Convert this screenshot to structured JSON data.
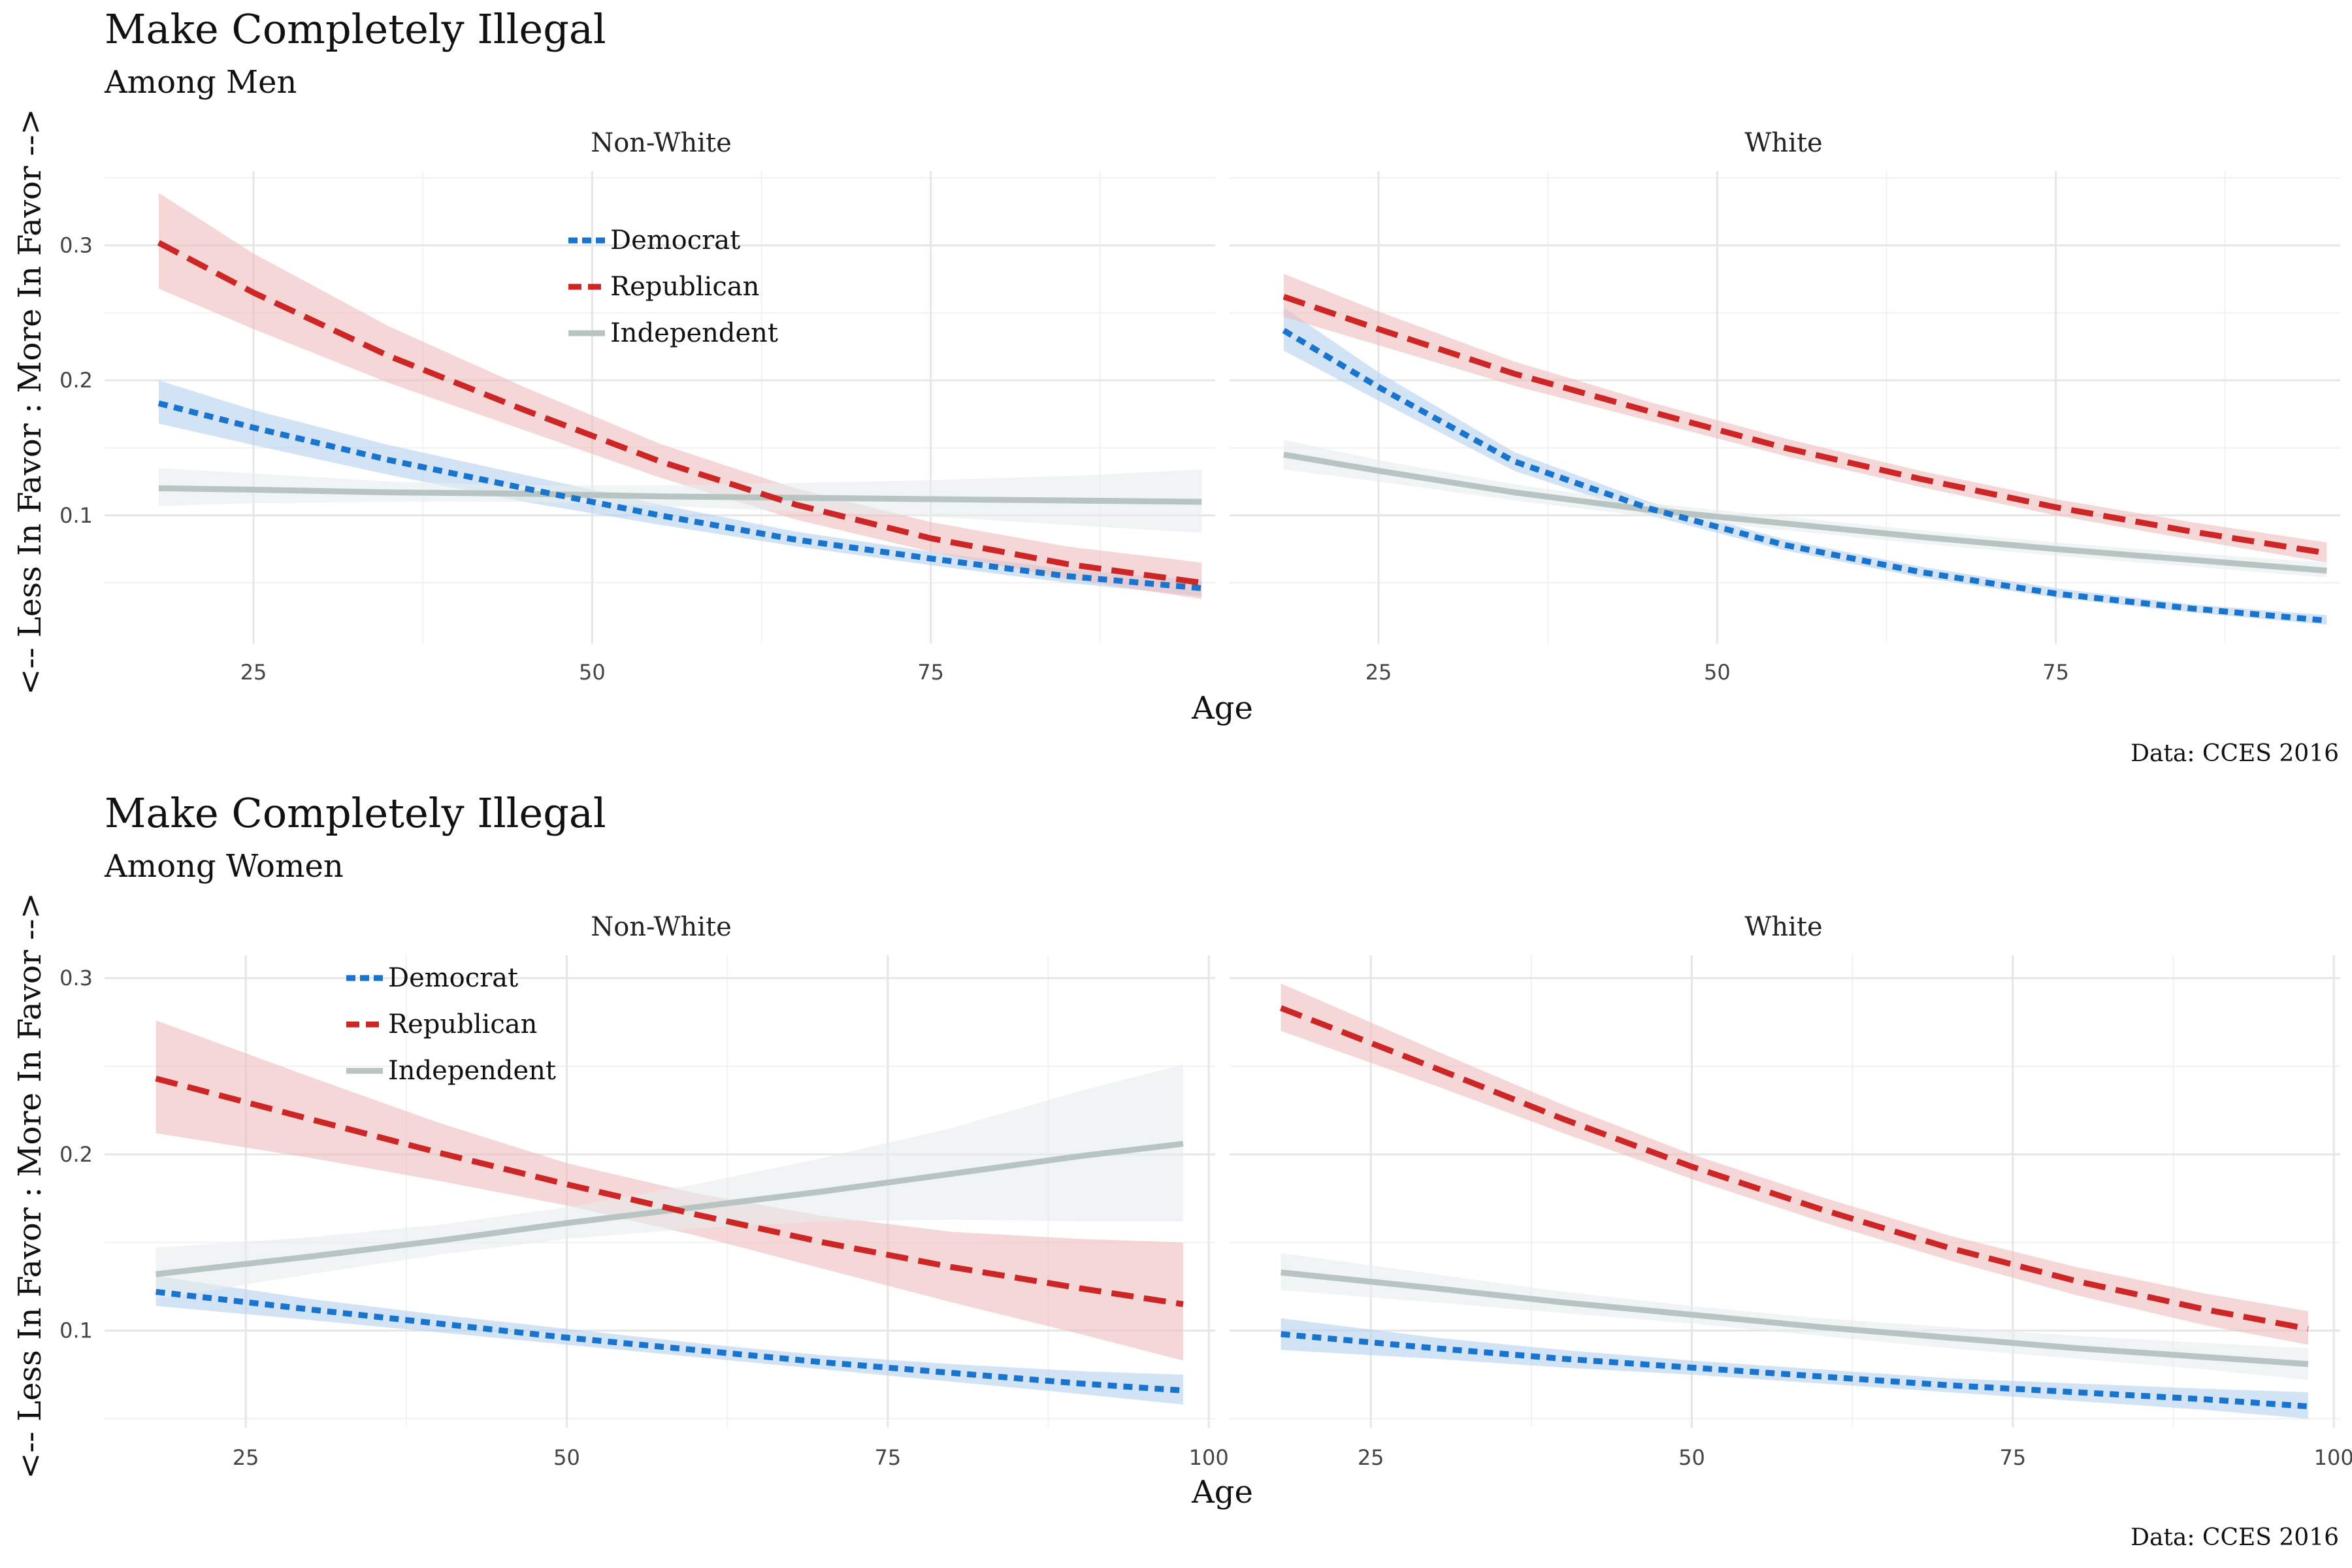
{
  "colors": {
    "Democrat": "#1874cd",
    "Republican": "#cd2626",
    "Independent": "#b8c4c2",
    "Democrat_band": "#b5d1f0",
    "Republican_band": "#efbcbc",
    "Independent_band": "#e6ecec",
    "grid_major": "#e6e6e6",
    "grid_minor": "#f1f1f1"
  },
  "chart_data": [
    {
      "type": "line",
      "title": "Make Completely Illegal",
      "subtitle": "Among Men",
      "xlabel": "Age",
      "ylabel": "<-- Less In Favor : More In Favor -->",
      "caption": "Data: CCES 2016",
      "legend": [
        "Democrat",
        "Republican",
        "Independent"
      ],
      "legend_placement": "inside top of left panel",
      "ylim": [
        0.005,
        0.355
      ],
      "yticks": [
        0.1,
        0.2,
        0.3
      ],
      "ytick_labels": [
        "0.1",
        "0.2",
        "0.3"
      ],
      "xlim": [
        14,
        96
      ],
      "xticks": [
        25,
        50,
        75
      ],
      "xtick_labels": [
        "25",
        "50",
        "75"
      ],
      "panels": [
        {
          "strip": "Non-White",
          "series": [
            {
              "name": "Democrat",
              "x": [
                18,
                25,
                35,
                45,
                55,
                65,
                75,
                85,
                95
              ],
              "y": [
                0.183,
                0.165,
                0.141,
                0.12,
                0.1,
                0.082,
                0.068,
                0.055,
                0.046
              ],
              "lower": [
                0.168,
                0.152,
                0.13,
                0.11,
                0.093,
                0.077,
                0.063,
                0.05,
                0.04
              ],
              "upper": [
                0.2,
                0.178,
                0.152,
                0.13,
                0.108,
                0.088,
                0.073,
                0.06,
                0.052
              ]
            },
            {
              "name": "Republican",
              "x": [
                18,
                25,
                35,
                45,
                55,
                65,
                75,
                85,
                95
              ],
              "y": [
                0.302,
                0.265,
                0.218,
                0.178,
                0.14,
                0.108,
                0.083,
                0.064,
                0.05
              ],
              "lower": [
                0.268,
                0.238,
                0.198,
                0.163,
                0.128,
                0.097,
                0.073,
                0.053,
                0.038
              ],
              "upper": [
                0.339,
                0.294,
                0.24,
                0.195,
                0.153,
                0.12,
                0.095,
                0.077,
                0.065
              ]
            },
            {
              "name": "Independent",
              "x": [
                18,
                25,
                35,
                45,
                55,
                65,
                75,
                85,
                95
              ],
              "y": [
                0.12,
                0.119,
                0.117,
                0.116,
                0.114,
                0.113,
                0.112,
                0.111,
                0.11
              ],
              "lower": [
                0.107,
                0.109,
                0.11,
                0.11,
                0.107,
                0.103,
                0.099,
                0.093,
                0.087
              ],
              "upper": [
                0.135,
                0.131,
                0.125,
                0.122,
                0.122,
                0.124,
                0.126,
                0.129,
                0.134
              ]
            }
          ]
        },
        {
          "strip": "White",
          "series": [
            {
              "name": "Democrat",
              "x": [
                18,
                25,
                35,
                45,
                55,
                65,
                75,
                85,
                95
              ],
              "y": [
                0.237,
                0.195,
                0.14,
                0.105,
                0.078,
                0.058,
                0.042,
                0.031,
                0.022
              ],
              "lower": [
                0.222,
                0.185,
                0.133,
                0.1,
                0.074,
                0.054,
                0.039,
                0.028,
                0.019
              ],
              "upper": [
                0.254,
                0.206,
                0.147,
                0.11,
                0.082,
                0.062,
                0.046,
                0.034,
                0.026
              ]
            },
            {
              "name": "Republican",
              "x": [
                18,
                25,
                35,
                45,
                55,
                65,
                75,
                85,
                95
              ],
              "y": [
                0.262,
                0.238,
                0.205,
                0.177,
                0.15,
                0.127,
                0.106,
                0.088,
                0.072
              ],
              "lower": [
                0.247,
                0.226,
                0.196,
                0.17,
                0.144,
                0.121,
                0.1,
                0.082,
                0.065
              ],
              "upper": [
                0.279,
                0.251,
                0.214,
                0.184,
                0.157,
                0.133,
                0.112,
                0.095,
                0.08
              ]
            },
            {
              "name": "Independent",
              "x": [
                18,
                25,
                35,
                45,
                55,
                65,
                75,
                85,
                95
              ],
              "y": [
                0.145,
                0.133,
                0.117,
                0.104,
                0.094,
                0.084,
                0.075,
                0.067,
                0.059
              ],
              "lower": [
                0.134,
                0.125,
                0.111,
                0.099,
                0.089,
                0.079,
                0.07,
                0.062,
                0.054
              ],
              "upper": [
                0.156,
                0.141,
                0.123,
                0.109,
                0.099,
                0.089,
                0.08,
                0.072,
                0.065
              ]
            }
          ]
        }
      ]
    },
    {
      "type": "line",
      "title": "Make Completely Illegal",
      "subtitle": "Among Women",
      "xlabel": "Age",
      "ylabel": "<-- Less In Favor : More In Favor -->",
      "caption": "Data: CCES 2016",
      "legend": [
        "Democrat",
        "Republican",
        "Independent"
      ],
      "legend_placement": "inside top of left panel",
      "ylim": [
        0.045,
        0.313
      ],
      "yticks": [
        0.1,
        0.2,
        0.3
      ],
      "ytick_labels": [
        "0.1",
        "0.2",
        "0.3"
      ],
      "xlim": [
        14,
        100.5
      ],
      "xticks": [
        25,
        50,
        75,
        100
      ],
      "xtick_labels": [
        "25",
        "50",
        "75",
        "100"
      ],
      "panels": [
        {
          "strip": "Non-White",
          "series": [
            {
              "name": "Democrat",
              "x": [
                18,
                30,
                40,
                50,
                60,
                70,
                80,
                90,
                98
              ],
              "y": [
                0.122,
                0.112,
                0.104,
                0.096,
                0.089,
                0.082,
                0.076,
                0.07,
                0.066
              ],
              "lower": [
                0.114,
                0.106,
                0.099,
                0.092,
                0.085,
                0.078,
                0.071,
                0.064,
                0.058
              ],
              "upper": [
                0.131,
                0.118,
                0.109,
                0.101,
                0.093,
                0.086,
                0.081,
                0.077,
                0.075
              ]
            },
            {
              "name": "Republican",
              "x": [
                18,
                30,
                40,
                50,
                60,
                70,
                80,
                90,
                98
              ],
              "y": [
                0.243,
                0.22,
                0.201,
                0.183,
                0.166,
                0.15,
                0.136,
                0.124,
                0.115
              ],
              "lower": [
                0.212,
                0.198,
                0.185,
                0.171,
                0.154,
                0.135,
                0.116,
                0.098,
                0.083
              ],
              "upper": [
                0.276,
                0.244,
                0.218,
                0.195,
                0.178,
                0.165,
                0.156,
                0.152,
                0.15
              ]
            },
            {
              "name": "Independent",
              "x": [
                18,
                30,
                40,
                50,
                60,
                70,
                80,
                90,
                98
              ],
              "y": [
                0.132,
                0.142,
                0.151,
                0.161,
                0.17,
                0.179,
                0.189,
                0.199,
                0.206
              ],
              "lower": [
                0.118,
                0.132,
                0.143,
                0.152,
                0.158,
                0.162,
                0.163,
                0.162,
                0.162
              ],
              "upper": [
                0.147,
                0.153,
                0.16,
                0.17,
                0.183,
                0.198,
                0.215,
                0.236,
                0.251
              ]
            }
          ]
        },
        {
          "strip": "White",
          "series": [
            {
              "name": "Democrat",
              "x": [
                18,
                30,
                40,
                50,
                60,
                70,
                80,
                90,
                98
              ],
              "y": [
                0.098,
                0.09,
                0.084,
                0.079,
                0.074,
                0.069,
                0.065,
                0.061,
                0.057
              ],
              "lower": [
                0.089,
                0.084,
                0.079,
                0.075,
                0.07,
                0.065,
                0.06,
                0.055,
                0.05
              ],
              "upper": [
                0.107,
                0.096,
                0.089,
                0.083,
                0.078,
                0.073,
                0.07,
                0.067,
                0.065
              ]
            },
            {
              "name": "Republican",
              "x": [
                18,
                30,
                40,
                50,
                60,
                70,
                80,
                90,
                98
              ],
              "y": [
                0.283,
                0.249,
                0.22,
                0.193,
                0.169,
                0.147,
                0.128,
                0.112,
                0.101
              ],
              "lower": [
                0.27,
                0.239,
                0.212,
                0.186,
                0.162,
                0.14,
                0.12,
                0.103,
                0.092
              ],
              "upper": [
                0.297,
                0.259,
                0.228,
                0.2,
                0.176,
                0.154,
                0.136,
                0.121,
                0.111
              ]
            },
            {
              "name": "Independent",
              "x": [
                18,
                30,
                40,
                50,
                60,
                70,
                80,
                90,
                98
              ],
              "y": [
                0.133,
                0.124,
                0.116,
                0.109,
                0.102,
                0.096,
                0.09,
                0.085,
                0.081
              ],
              "lower": [
                0.123,
                0.116,
                0.11,
                0.104,
                0.097,
                0.09,
                0.084,
                0.078,
                0.072
              ],
              "upper": [
                0.144,
                0.132,
                0.122,
                0.114,
                0.107,
                0.102,
                0.097,
                0.093,
                0.09
              ]
            }
          ]
        }
      ]
    }
  ]
}
